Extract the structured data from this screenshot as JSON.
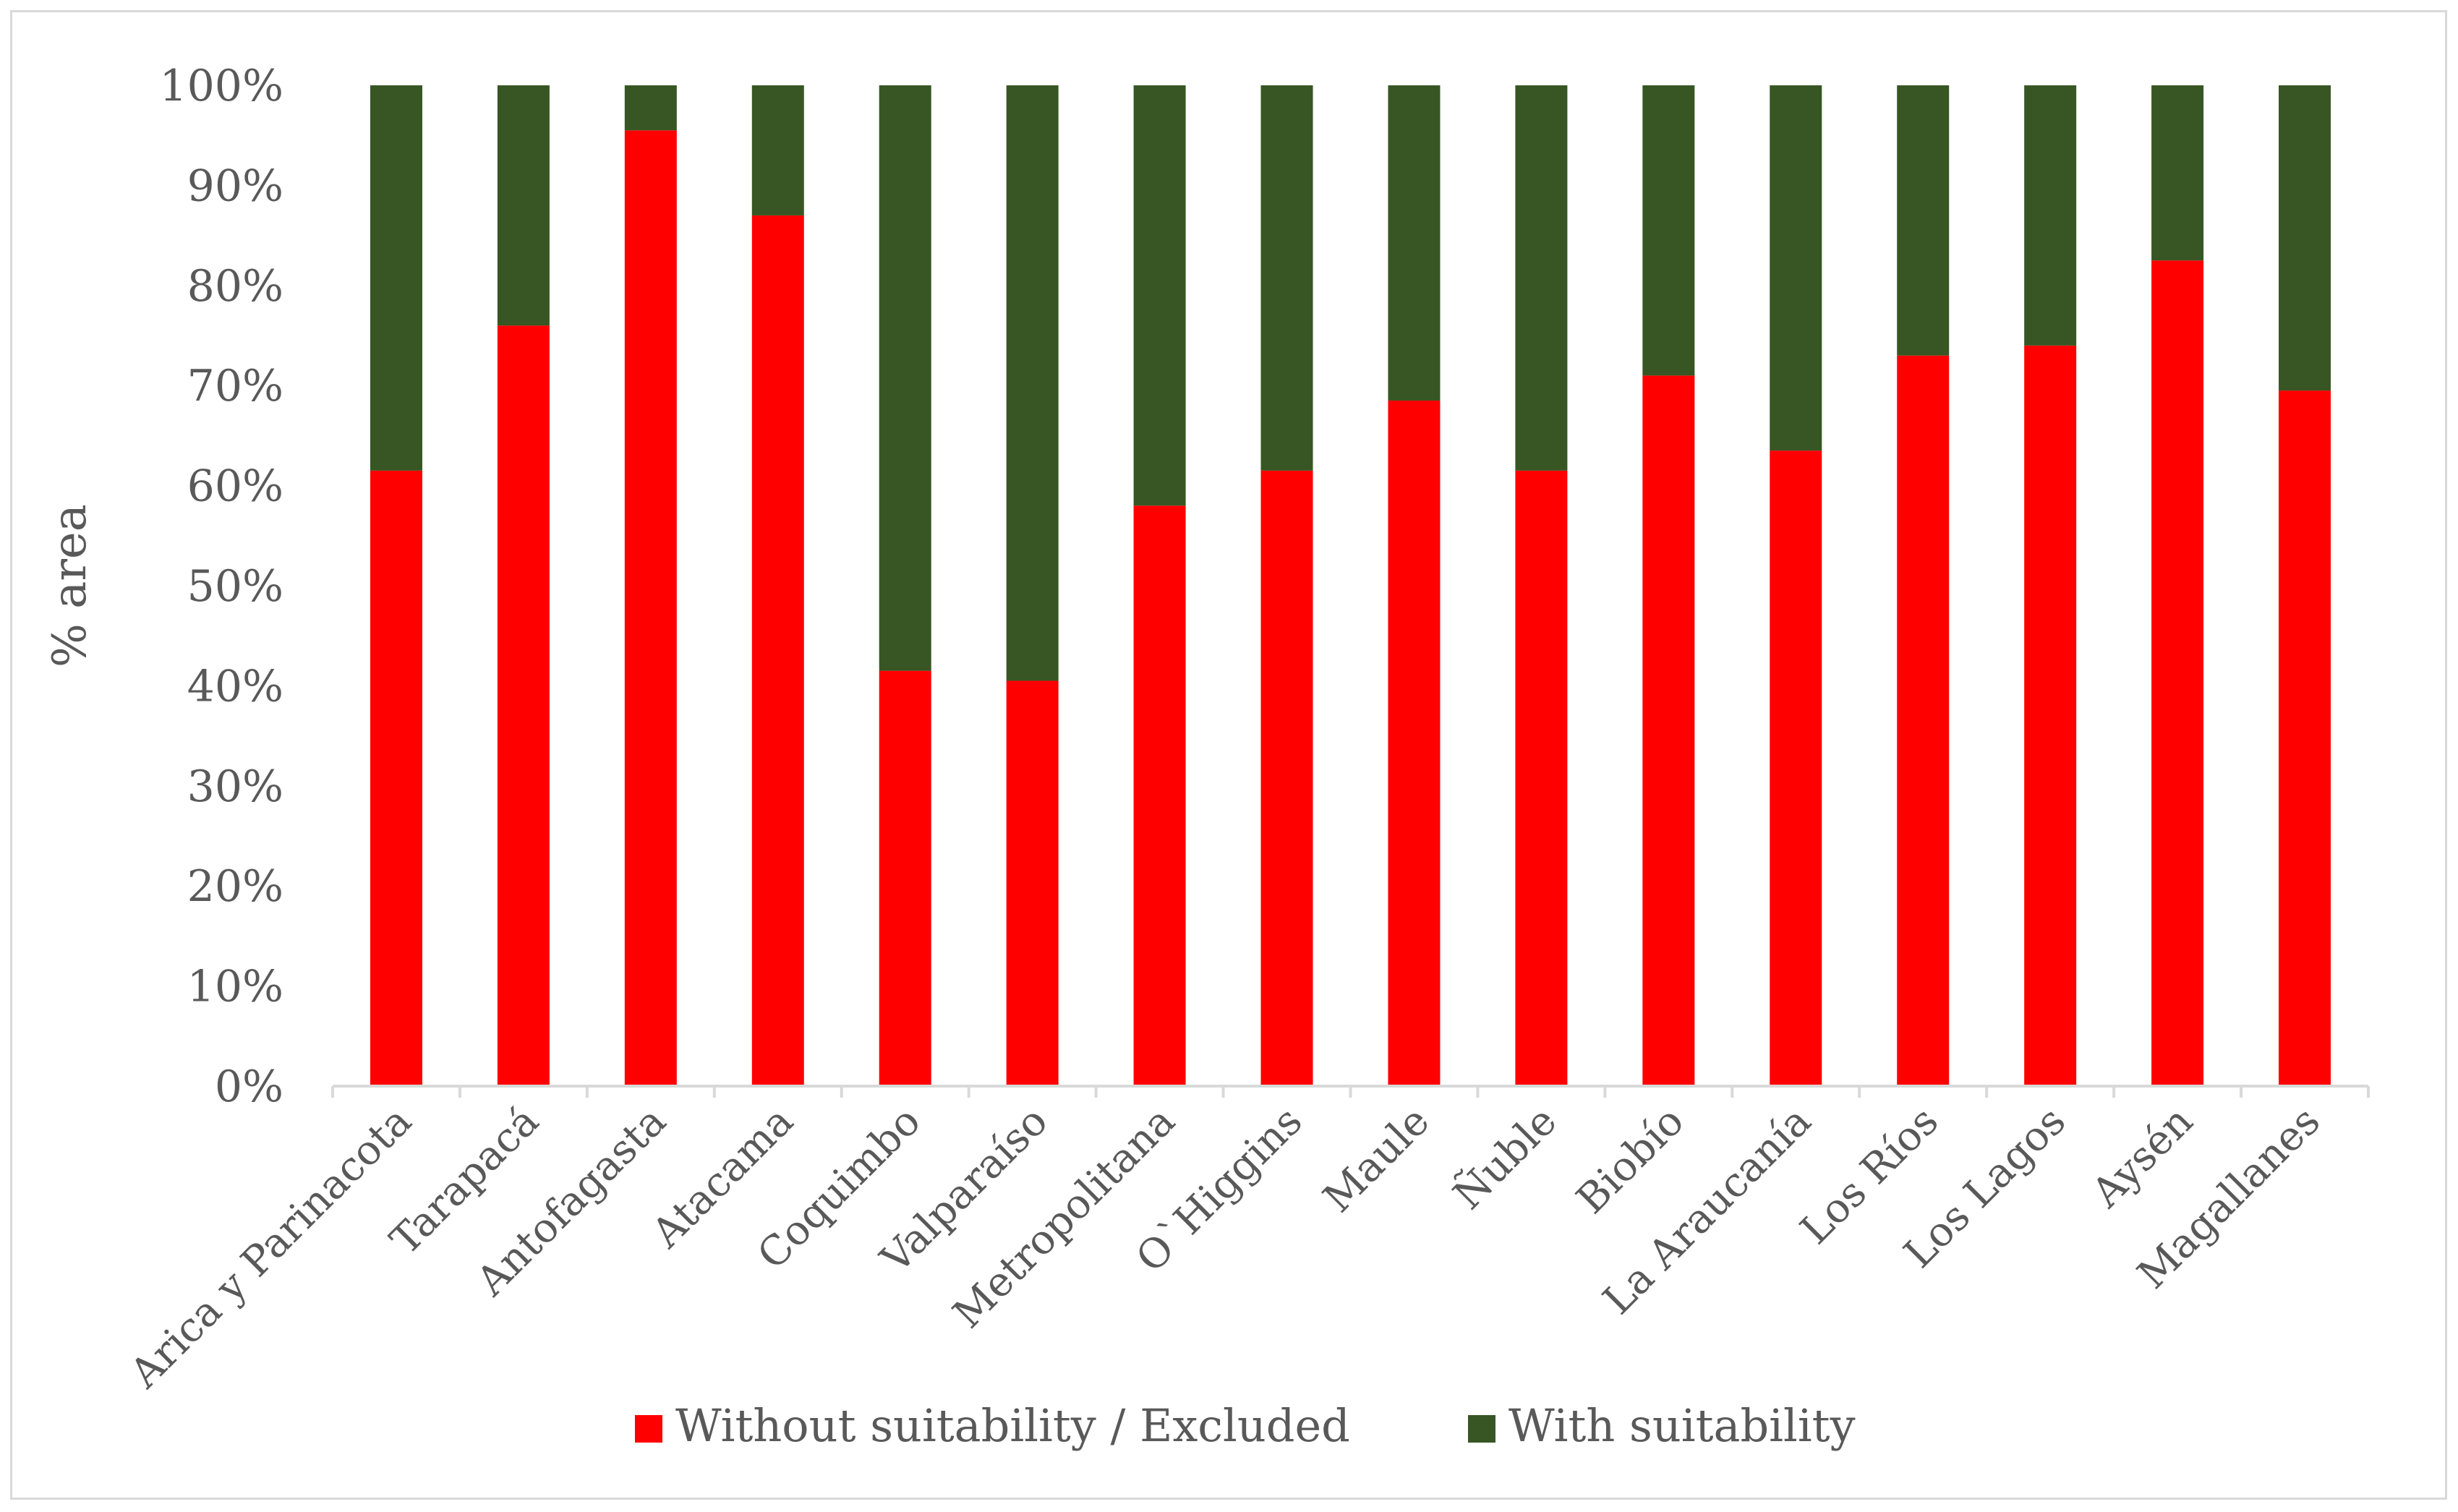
{
  "chart_data": {
    "type": "bar",
    "stacked": true,
    "title": "",
    "xlabel": "",
    "ylabel": "% area",
    "ylim": [
      0,
      100
    ],
    "yticks": [
      "0%",
      "10%",
      "20%",
      "30%",
      "40%",
      "50%",
      "60%",
      "70%",
      "80%",
      "90%",
      "100%"
    ],
    "categories": [
      "Arica y Parinacota",
      "Tarapacá",
      "Antofagasta",
      "Atacama",
      "Coquimbo",
      "Valparaíso",
      "Metropolitana",
      "O`Higgins",
      "Maule",
      "Ñuble",
      "Biobío",
      "La Araucanía",
      "Los Ríos",
      "Los Lagos",
      "Aysén",
      "Magallanes"
    ],
    "series": [
      {
        "name": "Without suitability / Excluded",
        "color": "#ff0000",
        "values": [
          61.5,
          76,
          95.5,
          87,
          41.5,
          40.5,
          58,
          61.5,
          68.5,
          61.5,
          71,
          63.5,
          73,
          74,
          82.5,
          69.5
        ]
      },
      {
        "name": "With suitability",
        "color": "#375623",
        "values": [
          38.5,
          24,
          4.5,
          13,
          58.5,
          59.5,
          42,
          38.5,
          31.5,
          38.5,
          29,
          36.5,
          27,
          26,
          17.5,
          30.5
        ]
      }
    ],
    "legend_position": "bottom",
    "grid": false
  }
}
